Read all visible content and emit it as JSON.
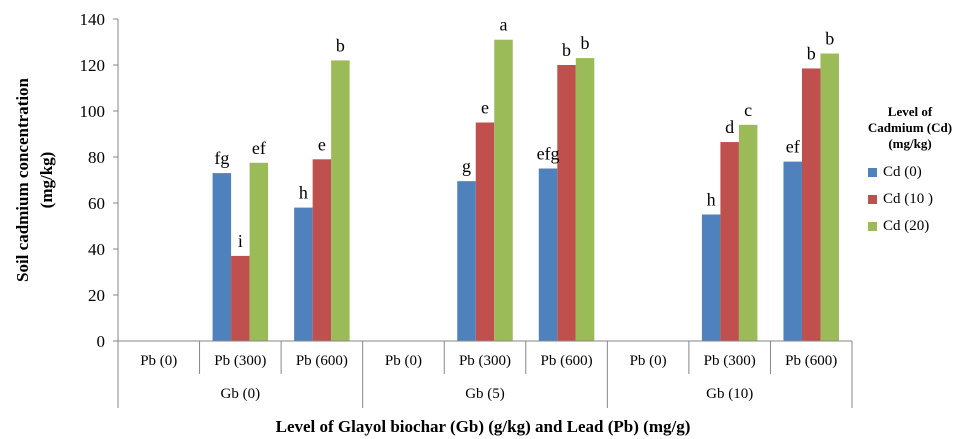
{
  "chart_data": {
    "type": "bar",
    "title": "",
    "ylabel": "Soil cadmium concentration (mg/kg)",
    "ylabel_lines": [
      "Soil cadmium concentration",
      "(mg/kg)"
    ],
    "xlabel": "Level of Glayol biochar (Gb) (g/kg) and Lead (Pb) (mg/g)",
    "ylim": [
      0,
      140
    ],
    "yticks": [
      0,
      20,
      40,
      60,
      80,
      100,
      120,
      140
    ],
    "grid": false,
    "legend_position": "right",
    "legend_title": "Level of Cadmium (Cd) (mg/kg)",
    "legend_title_lines": [
      "Level of",
      "Cadmium (Cd)",
      "(mg/kg)"
    ],
    "groups": [
      "Gb (0)",
      "Gb (5)",
      "Gb (10)"
    ],
    "categories": [
      "Pb (0)",
      "Pb (300)",
      "Pb (600)",
      "Pb (0)",
      "Pb (300)",
      "Pb (600)",
      "Pb (0)",
      "Pb (300)",
      "Pb (600)"
    ],
    "series": [
      {
        "name": "Cd (0)",
        "color": "#4F81BD",
        "values": [
          0,
          73,
          58,
          0,
          69.5,
          75,
          0,
          55,
          78
        ],
        "labels": [
          "",
          "fg",
          "h",
          "",
          "g",
          "efg",
          "",
          "h",
          "ef"
        ]
      },
      {
        "name": "Cd (10 )",
        "color": "#C0504D",
        "values": [
          0,
          37,
          79,
          0,
          95,
          120,
          0,
          86.5,
          118.5
        ],
        "labels": [
          "",
          "i",
          "e",
          "",
          "e",
          "b",
          "",
          "d",
          "b"
        ]
      },
      {
        "name": "Cd (20)",
        "color": "#9BBB59",
        "values": [
          0,
          77.5,
          122,
          0,
          131,
          123,
          0,
          94,
          125
        ],
        "labels": [
          "",
          "ef",
          "b",
          "",
          "a",
          "b",
          "",
          "c",
          "b"
        ]
      }
    ]
  }
}
